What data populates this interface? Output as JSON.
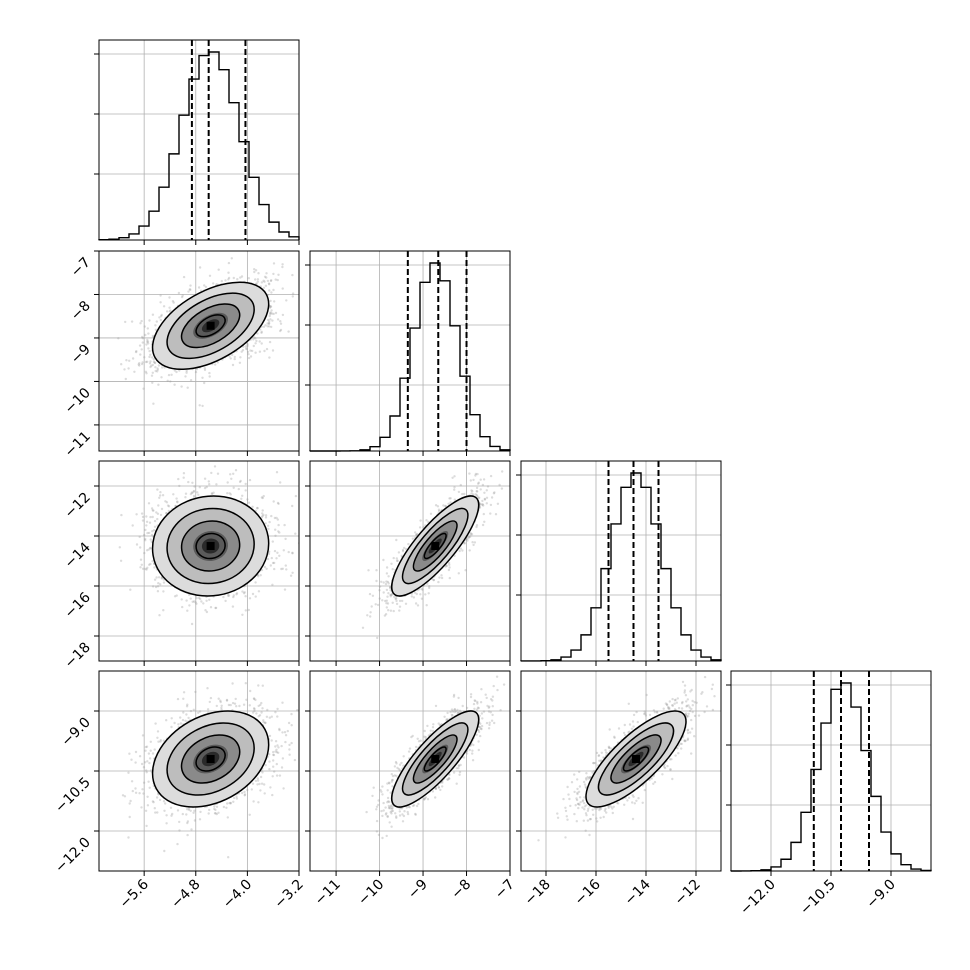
{
  "chart_data": {
    "type": "corner",
    "n_params": 4,
    "grid": true,
    "params": [
      {
        "range": [
          -6.3,
          -3.2
        ],
        "ticks": [
          "−5.6",
          "−4.8",
          "−4.0",
          "−3.2"
        ],
        "tick_values": [
          -5.6,
          -4.8,
          -4.0,
          -3.2
        ],
        "quantiles": [
          -4.86,
          -4.6,
          -4.03
        ],
        "mean": -4.57,
        "sd": 0.45
      },
      {
        "range": [
          -11.6,
          -7.0
        ],
        "ticks": [
          "−11",
          "−10",
          "−9",
          "−8",
          "−7"
        ],
        "tick_values": [
          -11,
          -10,
          -9,
          -8,
          -7
        ],
        "quantiles": [
          -9.35,
          -8.65,
          -8.0
        ],
        "mean": -8.72,
        "sd": 0.5
      },
      {
        "range": [
          -19.0,
          -11.0
        ],
        "ticks": [
          "−18",
          "−16",
          "−14",
          "−12"
        ],
        "tick_values": [
          -18,
          -16,
          -14,
          -12
        ],
        "quantiles": [
          -15.5,
          -14.5,
          -13.5
        ],
        "mean": -14.4,
        "sd": 1.0
      },
      {
        "range": [
          -13.0,
          -8.0
        ],
        "ticks": [
          "−12.0",
          "−10.5",
          "−9.0"
        ],
        "tick_values": [
          -12.0,
          -10.5,
          -9.0
        ],
        "quantiles": [
          -10.93,
          -10.25,
          -9.55
        ],
        "mean": -10.2,
        "sd": 0.6
      }
    ],
    "correlations": [
      [
        1,
        0.5,
        0.05,
        0.3
      ],
      [
        0.5,
        1,
        0.82,
        0.82
      ],
      [
        0.05,
        0.82,
        1,
        0.78
      ],
      [
        0.3,
        0.82,
        0.78,
        1
      ]
    ],
    "histogram_bins": 20,
    "contour_levels": [
      0.5,
      1.0,
      1.5,
      2.0
    ],
    "scatter_points": 2000,
    "colors": {
      "line": "#000000",
      "grid": "#b0b0b0",
      "points": "#9a9a9a",
      "hist2d_max": "#000000"
    }
  }
}
